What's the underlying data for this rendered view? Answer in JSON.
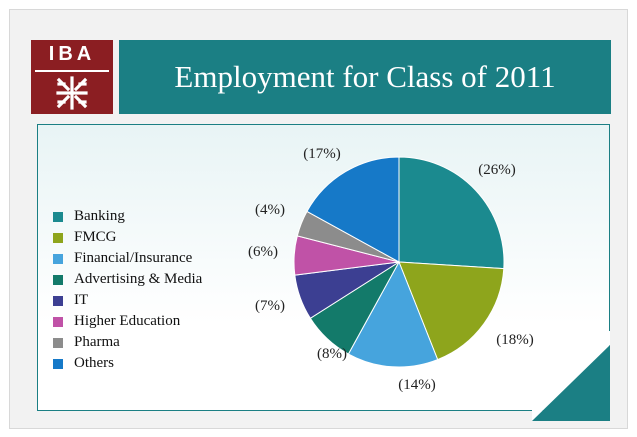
{
  "logo": {
    "text": "IBA"
  },
  "title": "Employment for Class of 2011",
  "chart_data": {
    "type": "pie",
    "title": "Employment for Class of 2011",
    "legend_position": "left",
    "categories": [
      "Banking",
      "FMCG",
      "Financial/Insurance",
      "Advertising & Media",
      "IT",
      "Higher Education",
      "Pharma",
      "Others"
    ],
    "values": [
      26,
      18,
      14,
      8,
      7,
      6,
      4,
      17
    ],
    "labels": [
      "(26%)",
      "(18%)",
      "(14%)",
      "(8%)",
      "(7%)",
      "(6%)",
      "(4%)",
      "(17%)"
    ],
    "colors": [
      "#1b8a8f",
      "#8ea51c",
      "#46a4dd",
      "#137a6a",
      "#3c3f92",
      "#c052a7",
      "#8c8c8c",
      "#1679c8"
    ]
  },
  "colors": {
    "title_bar": "#1b7f84",
    "logo_bg": "#8b1e22"
  }
}
